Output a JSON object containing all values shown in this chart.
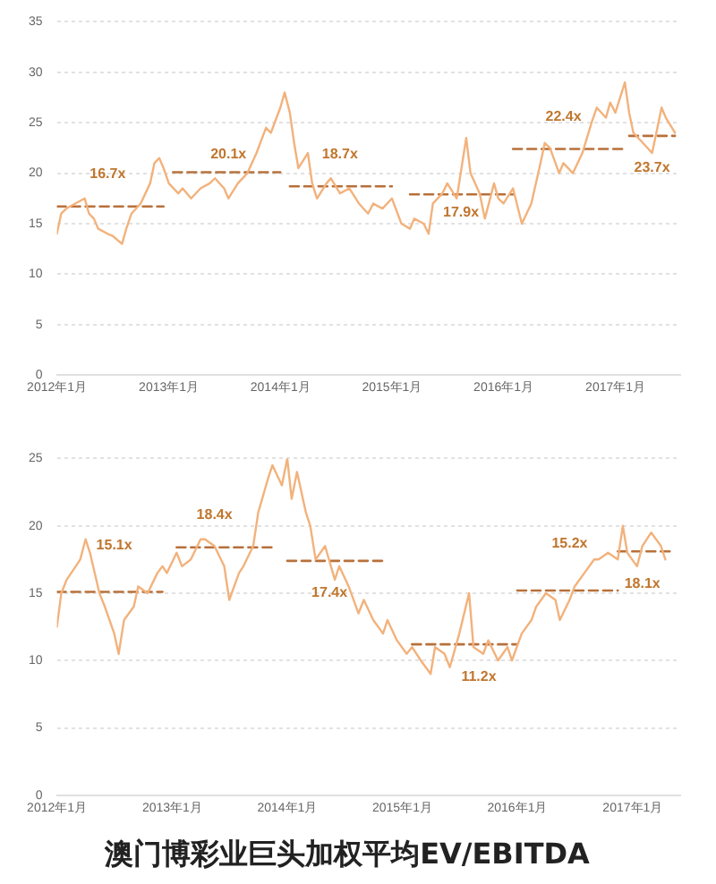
{
  "chart_data": [
    {
      "type": "line",
      "marker": "none",
      "line_style": "solid",
      "grid": "y",
      "xlim": [
        "2012-01",
        "2017-08"
      ],
      "ylim": [
        0,
        35
      ],
      "yticks": [
        0,
        5,
        10,
        15,
        20,
        25,
        30,
        35
      ],
      "xticks": [
        {
          "value": "2012-01",
          "label": "2012年1月"
        },
        {
          "value": "2013-01",
          "label": "2013年1月"
        },
        {
          "value": "2014-01",
          "label": "2014年1月"
        },
        {
          "value": "2015-01",
          "label": "2015年1月"
        },
        {
          "value": "2016-01",
          "label": "2016年1月"
        },
        {
          "value": "2017-01",
          "label": "2017年1月"
        }
      ],
      "x": [
        "2012-01-01",
        "2012-01-15",
        "2012-02-01",
        "2012-03-01",
        "2012-04-01",
        "2012-04-15",
        "2012-05-01",
        "2012-05-15",
        "2012-06-15",
        "2012-07-01",
        "2012-08-01",
        "2012-08-15",
        "2012-09-01",
        "2012-10-01",
        "2012-11-01",
        "2012-11-15",
        "2012-12-01",
        "2012-12-15",
        "2013-01-01",
        "2013-02-01",
        "2013-02-15",
        "2013-03-15",
        "2013-04-15",
        "2013-05-15",
        "2013-06-01",
        "2013-07-01",
        "2013-07-15",
        "2013-08-15",
        "2013-09-15",
        "2013-10-15",
        "2013-11-15",
        "2013-12-01",
        "2014-01-01",
        "2014-01-15",
        "2014-02-01",
        "2014-02-15",
        "2014-03-01",
        "2014-04-01",
        "2014-04-15",
        "2014-05-01",
        "2014-06-01",
        "2014-06-15",
        "2014-07-15",
        "2014-08-15",
        "2014-09-15",
        "2014-10-15",
        "2014-11-01",
        "2014-12-01",
        "2015-01-01",
        "2015-02-01",
        "2015-03-01",
        "2015-03-15",
        "2015-04-15",
        "2015-05-01",
        "2015-05-15",
        "2015-06-15",
        "2015-07-01",
        "2015-08-01",
        "2015-09-01",
        "2015-09-15",
        "2015-10-15",
        "2015-11-01",
        "2015-12-01",
        "2015-12-15",
        "2016-01-01",
        "2016-02-01",
        "2016-03-01",
        "2016-04-01",
        "2016-05-01",
        "2016-05-15",
        "2016-06-01",
        "2016-07-01",
        "2016-07-15",
        "2016-08-15",
        "2016-09-15",
        "2016-10-15",
        "2016-11-01",
        "2016-12-01",
        "2016-12-15",
        "2017-01-01",
        "2017-02-01",
        "2017-02-15",
        "2017-03-01",
        "2017-04-01",
        "2017-05-01",
        "2017-05-15",
        "2017-06-01",
        "2017-06-15",
        "2017-07-15"
      ],
      "series": [
        {
          "color": "#f2b27c",
          "values": [
            14,
            16,
            16.5,
            17,
            17.5,
            16,
            15.5,
            14.5,
            14,
            13.8,
            13,
            14.5,
            16,
            17,
            19,
            21,
            21.5,
            20.5,
            19,
            18,
            18.5,
            17.5,
            18.5,
            19,
            19.5,
            18.5,
            17.5,
            19,
            20,
            22,
            24.5,
            24,
            26.5,
            28,
            26,
            23,
            20.5,
            22,
            19,
            17.5,
            19,
            19.5,
            18,
            18.5,
            17,
            16,
            17,
            16.5,
            17.5,
            15,
            14.5,
            15.5,
            15,
            14,
            17,
            18,
            19,
            17.5,
            23.5,
            20,
            18,
            15.5,
            19,
            17.5,
            17,
            18.5,
            15,
            17,
            21,
            23,
            22.5,
            20,
            21,
            20,
            22,
            25,
            26.5,
            25.5,
            27,
            26,
            29,
            26,
            24,
            23,
            22,
            24,
            26.5,
            25.5,
            24
          ]
        },
        {
          "type": "line",
          "line_style": "dashed",
          "color": "#b8703a",
          "x": [
            "2012-01-01",
            "2012-12-15"
          ],
          "values": [
            16.7,
            16.7
          ]
        },
        {
          "type": "line",
          "line_style": "dashed",
          "color": "#b8703a",
          "x": [
            "2013-01-15",
            "2014-01-01"
          ],
          "values": [
            20.1,
            20.1
          ]
        },
        {
          "type": "line",
          "line_style": "dashed",
          "color": "#b8703a",
          "x": [
            "2014-02-01",
            "2015-01-01"
          ],
          "values": [
            18.7,
            18.7
          ]
        },
        {
          "type": "line",
          "line_style": "dashed",
          "color": "#b8703a",
          "x": [
            "2015-03-01",
            "2016-02-01"
          ],
          "values": [
            17.9,
            17.9
          ]
        },
        {
          "type": "line",
          "line_style": "dashed",
          "color": "#b8703a",
          "x": [
            "2016-02-01",
            "2017-02-01"
          ],
          "values": [
            22.4,
            22.4
          ]
        },
        {
          "type": "line",
          "line_style": "dashed",
          "color": "#b8703a",
          "x": [
            "2017-02-15",
            "2017-07-15"
          ],
          "values": [
            23.7,
            23.7
          ]
        }
      ],
      "annotations": [
        {
          "text": "16.7x",
          "x": "2012-06-15",
          "y": 16.7
        },
        {
          "text": "20.1x",
          "x": "2013-07-15",
          "y": 20.1
        },
        {
          "text": "18.7x",
          "x": "2014-07-15",
          "y": 18.7
        },
        {
          "text": "17.9x",
          "x": "2015-08-15",
          "y": 17.9
        },
        {
          "text": "22.4x",
          "x": "2016-07-15",
          "y": 22.4
        },
        {
          "text": "23.7x",
          "x": "2017-05-01",
          "y": 23.7
        }
      ]
    },
    {
      "type": "line",
      "marker": "none",
      "line_style": "solid",
      "grid": "y",
      "title": "澳门博彩业巨头加权平均EV/EBITDA",
      "xlim": [
        "2012-01",
        "2017-06"
      ],
      "ylim": [
        0,
        25
      ],
      "yticks": [
        0,
        5,
        10,
        15,
        20,
        25
      ],
      "xticks": [
        {
          "value": "2012-01",
          "label": "2012年1月"
        },
        {
          "value": "2013-01",
          "label": "2013年1月"
        },
        {
          "value": "2014-01",
          "label": "2014年1月"
        },
        {
          "value": "2015-01",
          "label": "2015年1月"
        },
        {
          "value": "2016-01",
          "label": "2016年1月"
        },
        {
          "value": "2017-01",
          "label": "2017年1月"
        }
      ],
      "x": [
        "2012-01-01",
        "2012-01-15",
        "2012-02-01",
        "2012-03-01",
        "2012-03-15",
        "2012-04-01",
        "2012-04-15",
        "2012-05-15",
        "2012-06-01",
        "2012-07-01",
        "2012-07-15",
        "2012-08-01",
        "2012-09-01",
        "2012-09-15",
        "2012-10-15",
        "2012-11-15",
        "2012-12-01",
        "2012-12-15",
        "2013-01-15",
        "2013-02-01",
        "2013-03-01",
        "2013-04-01",
        "2013-04-15",
        "2013-05-15",
        "2013-06-15",
        "2013-07-01",
        "2013-08-01",
        "2013-08-15",
        "2013-09-15",
        "2013-10-01",
        "2013-11-01",
        "2013-11-15",
        "2013-12-15",
        "2014-01-01",
        "2014-01-15",
        "2014-02-01",
        "2014-03-01",
        "2014-03-15",
        "2014-04-01",
        "2014-05-01",
        "2014-06-01",
        "2014-06-15",
        "2014-07-15",
        "2014-08-15",
        "2014-09-01",
        "2014-10-01",
        "2014-11-01",
        "2014-11-15",
        "2014-12-15",
        "2015-01-15",
        "2015-02-01",
        "2015-03-01",
        "2015-04-01",
        "2015-04-15",
        "2015-05-15",
        "2015-06-01",
        "2015-07-01",
        "2015-08-01",
        "2015-08-15",
        "2015-09-15",
        "2015-10-01",
        "2015-11-01",
        "2015-12-01",
        "2015-12-15",
        "2016-01-15",
        "2016-02-15",
        "2016-03-01",
        "2016-04-01",
        "2016-05-01",
        "2016-05-15",
        "2016-06-15",
        "2016-07-01",
        "2016-08-01",
        "2016-09-01",
        "2016-09-15",
        "2016-10-15",
        "2016-11-15",
        "2016-12-01",
        "2016-12-15",
        "2017-01-15",
        "2017-02-01",
        "2017-03-01",
        "2017-04-01",
        "2017-04-15"
      ],
      "series": [
        {
          "color": "#f2b27c",
          "values": [
            12.5,
            15,
            16,
            17,
            17.5,
            19,
            18,
            15,
            14,
            12,
            10.5,
            13,
            14,
            15.5,
            15,
            16.5,
            17,
            16.5,
            18,
            17,
            17.5,
            19,
            19,
            18.5,
            17,
            14.5,
            16.5,
            17,
            18.5,
            21,
            23.5,
            24.5,
            23,
            25,
            22,
            24,
            21,
            20,
            17.5,
            18.5,
            16,
            17,
            15.5,
            13.5,
            14.5,
            13,
            12,
            13,
            11.5,
            10.5,
            11,
            10,
            9,
            11,
            10.5,
            9.5,
            12,
            15,
            11,
            10.5,
            11.5,
            10,
            11,
            10,
            12,
            13,
            14,
            15,
            14.5,
            13,
            14.5,
            15.5,
            16.5,
            17.5,
            17.5,
            18,
            17.5,
            20,
            18,
            17,
            18.5,
            19.5,
            18.5,
            17.5
          ]
        },
        {
          "type": "line",
          "line_style": "dashed",
          "color": "#b8703a",
          "x": [
            "2012-01-01",
            "2012-12-01"
          ],
          "values": [
            15.1,
            15.1
          ]
        },
        {
          "type": "line",
          "line_style": "dashed",
          "color": "#b8703a",
          "x": [
            "2013-01-15",
            "2013-11-15"
          ],
          "values": [
            18.4,
            18.4
          ]
        },
        {
          "type": "line",
          "line_style": "dashed",
          "color": "#b8703a",
          "x": [
            "2014-01-01",
            "2014-11-01"
          ],
          "values": [
            17.4,
            17.4
          ]
        },
        {
          "type": "line",
          "line_style": "dashed",
          "color": "#b8703a",
          "x": [
            "2015-02-01",
            "2016-01-01"
          ],
          "values": [
            11.2,
            11.2
          ]
        },
        {
          "type": "line",
          "line_style": "dashed",
          "color": "#b8703a",
          "x": [
            "2016-01-01",
            "2016-11-15"
          ],
          "values": [
            15.2,
            15.2
          ]
        },
        {
          "type": "line",
          "line_style": "dashed",
          "color": "#b8703a",
          "x": [
            "2016-11-15",
            "2017-05-01"
          ],
          "values": [
            18.1,
            18.1
          ]
        }
      ],
      "annotations": [
        {
          "text": "15.1x",
          "x": "2012-07-01",
          "y": 15.1
        },
        {
          "text": "18.4x",
          "x": "2013-05-15",
          "y": 18.4
        },
        {
          "text": "17.4x",
          "x": "2014-05-15",
          "y": 17.4
        },
        {
          "text": "11.2x",
          "x": "2015-09-01",
          "y": 11.2
        },
        {
          "text": "15.2x",
          "x": "2016-06-15",
          "y": 15.2
        },
        {
          "text": "18.1x",
          "x": "2017-02-01",
          "y": 18.1
        }
      ]
    }
  ]
}
